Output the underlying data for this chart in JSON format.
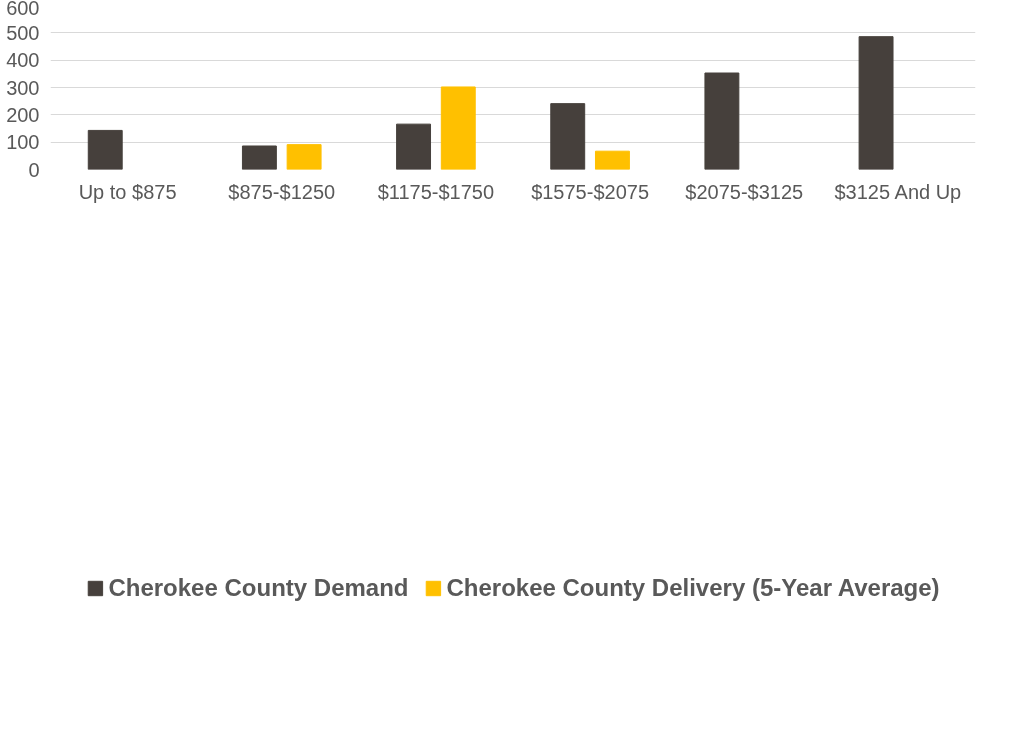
{
  "chart_data": {
    "type": "bar",
    "categories": [
      "Up to $875",
      "$875-$1250",
      "$1175-$1750",
      "$1575-$2075",
      "$2075-$3125",
      "$3125 And Up"
    ],
    "series": [
      {
        "name": "Cherokee County Demand",
        "color": "#46403c",
        "values": [
          143,
          86,
          166,
          241,
          353,
          486
        ]
      },
      {
        "name": "Cherokee County Delivery (5-Year Average)",
        "color": "#ffc000",
        "values": [
          null,
          91,
          302,
          67,
          null,
          null
        ]
      }
    ],
    "ylim": [
      0,
      600
    ],
    "yticks": [
      0,
      100,
      200,
      300,
      400,
      500,
      600
    ],
    "grid": "y",
    "legend": "bottom"
  }
}
